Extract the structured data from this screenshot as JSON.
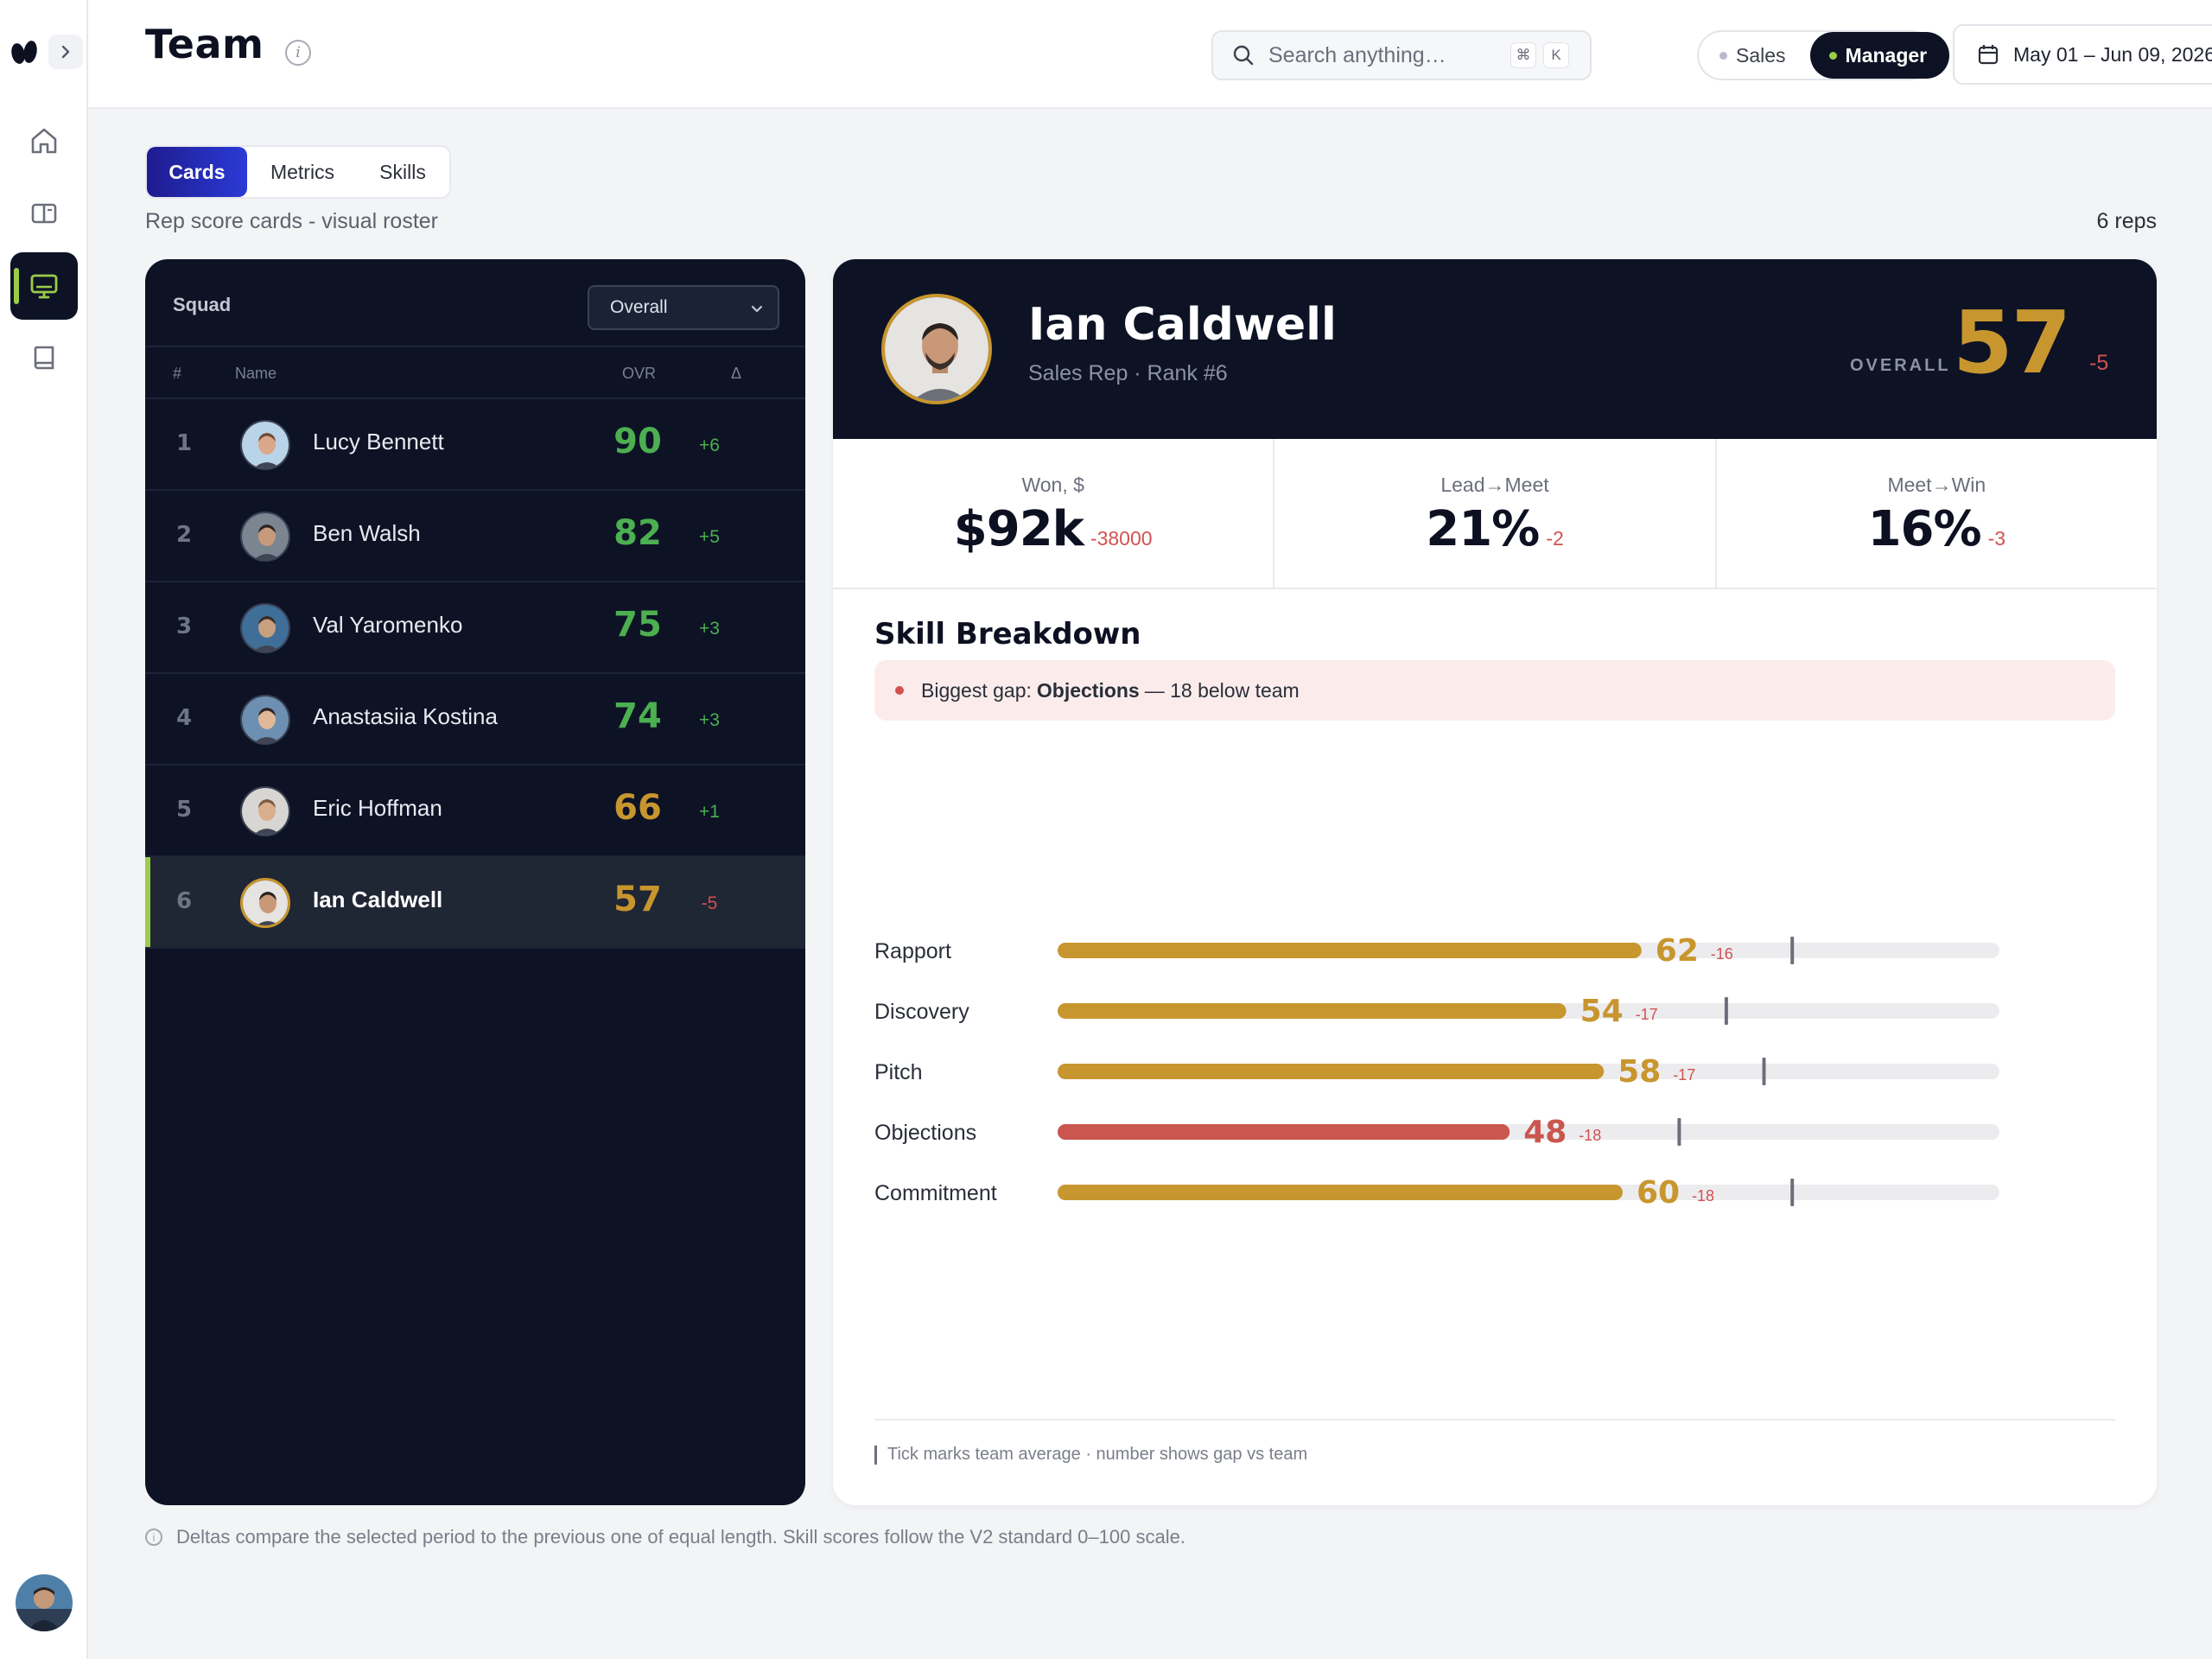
{
  "app": {
    "title": "Team",
    "icons": {
      "logo": "brand-logo-icon",
      "expand": "chevron-right-icon",
      "nav": [
        "home-icon",
        "book-open-icon",
        "monitor-icon",
        "notebook-icon"
      ]
    }
  },
  "header": {
    "search_placeholder": "Search anything…",
    "search_kbd_1": "⌘",
    "search_kbd_2": "K",
    "role_sales": "Sales",
    "role_manager": "Manager",
    "date_range": "May 01 – Jun 09, 2026"
  },
  "tabs": [
    {
      "label": "Cards",
      "active": true
    },
    {
      "label": "Metrics",
      "active": false
    },
    {
      "label": "Skills",
      "active": false
    }
  ],
  "subtitle": "Rep score cards - visual roster",
  "rep_count": "6 reps",
  "squad": {
    "label": "Squad",
    "filter": "Overall",
    "columns": {
      "rank": "#",
      "name": "Name",
      "ovr": "OVR",
      "delta": "Δ"
    },
    "rows": [
      {
        "rank": "1",
        "name": "Lucy Bennett",
        "ovr": "90",
        "delta": "+6",
        "ovr_color": "#4caf50",
        "delta_color": "#4caf50",
        "selected": false
      },
      {
        "rank": "2",
        "name": "Ben Walsh",
        "ovr": "82",
        "delta": "+5",
        "ovr_color": "#4caf50",
        "delta_color": "#4caf50",
        "selected": false
      },
      {
        "rank": "3",
        "name": "Val Yaromenko",
        "ovr": "75",
        "delta": "+3",
        "ovr_color": "#4caf50",
        "delta_color": "#4caf50",
        "selected": false
      },
      {
        "rank": "4",
        "name": "Anastasiia Kostina",
        "ovr": "74",
        "delta": "+3",
        "ovr_color": "#4caf50",
        "delta_color": "#4caf50",
        "selected": false
      },
      {
        "rank": "5",
        "name": "Eric Hoffman",
        "ovr": "66",
        "delta": "+1",
        "ovr_color": "#c8962e",
        "delta_color": "#4caf50",
        "selected": false
      },
      {
        "rank": "6",
        "name": "Ian Caldwell",
        "ovr": "57",
        "delta": "-5",
        "ovr_color": "#c8962e",
        "delta_color": "#d2524f",
        "selected": true
      }
    ]
  },
  "profile": {
    "name": "Ian Caldwell",
    "role": "Sales Rep · Rank #6",
    "overall_label": "OVERALL",
    "overall": "57",
    "overall_delta": "-5",
    "stats": [
      {
        "label": "Won, $",
        "value": "$92k",
        "delta": "-38000"
      },
      {
        "label": "Lead→Meet",
        "value": "21%",
        "delta": "-2"
      },
      {
        "label": "Meet→Win",
        "value": "16%",
        "delta": "-3"
      }
    ],
    "skill_title": "Skill Breakdown",
    "gap_prefix": "Biggest gap:",
    "gap_skill": "Objections",
    "gap_suffix": "— 18 below team",
    "footnote": "Tick marks team average · number shows gap vs team"
  },
  "chart_data": {
    "type": "bar",
    "orientation": "horizontal",
    "categories": [
      "Rapport",
      "Discovery",
      "Pitch",
      "Objections",
      "Commitment"
    ],
    "values": [
      62,
      54,
      58,
      48,
      60
    ],
    "gap_vs_team": [
      -16,
      -17,
      -17,
      -18,
      -18
    ],
    "team_average": [
      78,
      71,
      75,
      66,
      78
    ],
    "xlim": [
      0,
      100
    ],
    "colors": {
      "default": "#c8962e",
      "worst": "#c9564f",
      "track": "#ececef",
      "tick": "#6b6f7b",
      "gap": "#d2524f"
    }
  },
  "bottom_note": "Deltas compare the selected period to the previous one of equal length. Skill scores follow the V2 standard 0–100 scale.",
  "colors": {
    "dark_panel": "#0d1325",
    "accent_gold": "#c8962e",
    "accent_green": "#9ccb4a",
    "negative": "#d2524f",
    "tab_active": "#2b3bd6"
  }
}
